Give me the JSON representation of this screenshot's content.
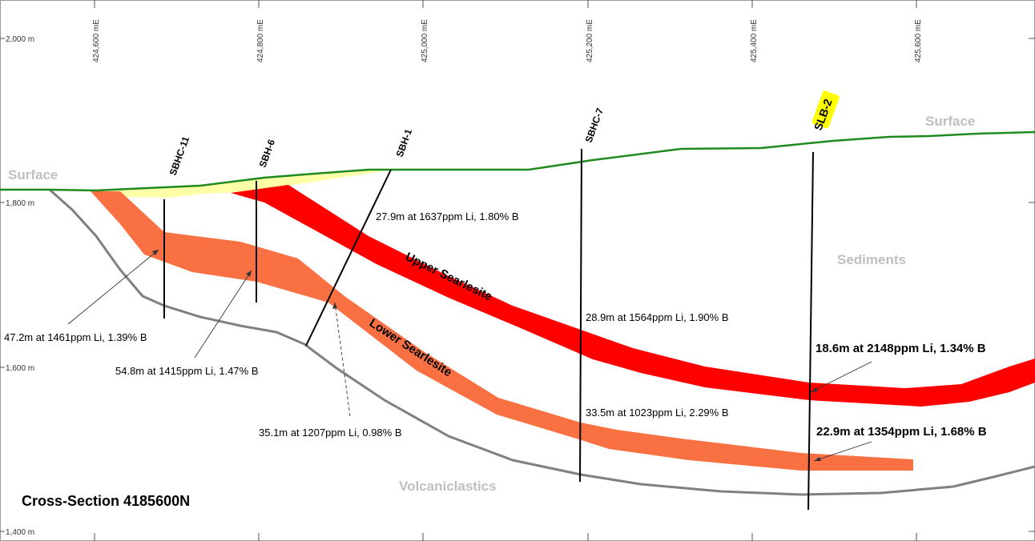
{
  "title": "Cross-Section 4185600N",
  "eastings": [
    "424,600 mE",
    "424,800 mE",
    "425,000 mE",
    "425,200 mE",
    "425,400 mE",
    "425,600 mE"
  ],
  "elevations": [
    "2,000 m",
    "1,800 m",
    "1,600 m",
    "1,400 m"
  ],
  "units": {
    "surface_left": "Surface",
    "surface_right": "Surface",
    "sediments": "Sediments",
    "volcaniclastics": "Volcaniclastics",
    "upper_searlesite": "Upper Searlesite",
    "lower_searlesite": "Lower Searlesite"
  },
  "drillholes": {
    "sbhc11": "SBHC-11",
    "sbh6": "SBH-6",
    "sbh1": "SBH-1",
    "sbhc7": "SBHC-7",
    "slb2": "SLB-2"
  },
  "intercepts": {
    "sbhc11": "47.2m at 1461ppm Li, 1.39% B",
    "sbh6": "54.8m at 1415ppm Li, 1.47% B",
    "sbh1_upper": "27.9m at 1637ppm Li, 1.80% B",
    "sbh1_lower": "35.1m at 1207ppm Li, 0.98% B",
    "sbhc7_upper": "28.9m at 1564ppm Li, 1.90% B",
    "sbhc7_lower": "33.5m at 1023ppm Li, 2.29% B",
    "slb2_upper": "18.6m at 2148ppm Li, 1.34% B",
    "slb2_lower": "22.9m at 1354ppm Li, 1.68% B"
  },
  "colors": {
    "upper_searlesite": "#ff0000",
    "lower_searlesite": "#f97142",
    "surface_line": "#1f8a1f",
    "basement_line": "#808080",
    "yellow_sediment": "#ffffa8",
    "unit_label": "#bfbfbf",
    "highlight": "#ffff00"
  }
}
